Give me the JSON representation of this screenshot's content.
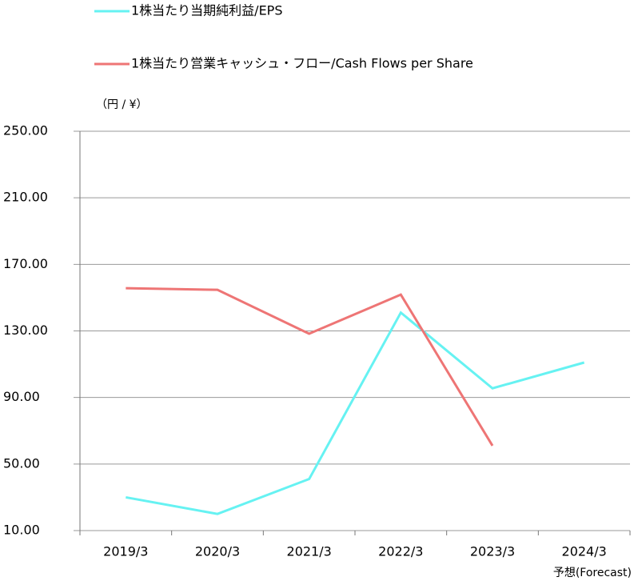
{
  "chart_data": {
    "type": "line",
    "y_axis_label": "（円 / ¥）",
    "forecast_label": "予想(Forecast)",
    "categories": [
      "2019/3",
      "2020/3",
      "2021/3",
      "2022/3",
      "2023/3",
      "2024/3"
    ],
    "series": [
      {
        "name": "1株当たり当期純利益/EPS",
        "color": "#66f2f2",
        "values": [
          30,
          20,
          41,
          141,
          95.5,
          111
        ]
      },
      {
        "name": "1株当たり営業キャッシュ・フロー/Cash Flows per Share",
        "color": "#ee7575",
        "values": [
          155.7,
          154.7,
          128.3,
          151.8,
          61,
          null
        ]
      }
    ],
    "ylim": [
      10,
      250
    ],
    "yticks": [
      {
        "value": 10,
        "label": "10.00"
      },
      {
        "value": 50,
        "label": "50.00"
      },
      {
        "value": 90,
        "label": "90.00"
      },
      {
        "value": 130,
        "label": "130.00"
      },
      {
        "value": 170,
        "label": "170.00"
      },
      {
        "value": 210,
        "label": "210.00"
      },
      {
        "value": 250,
        "label": "250.00"
      }
    ],
    "grid": true
  }
}
